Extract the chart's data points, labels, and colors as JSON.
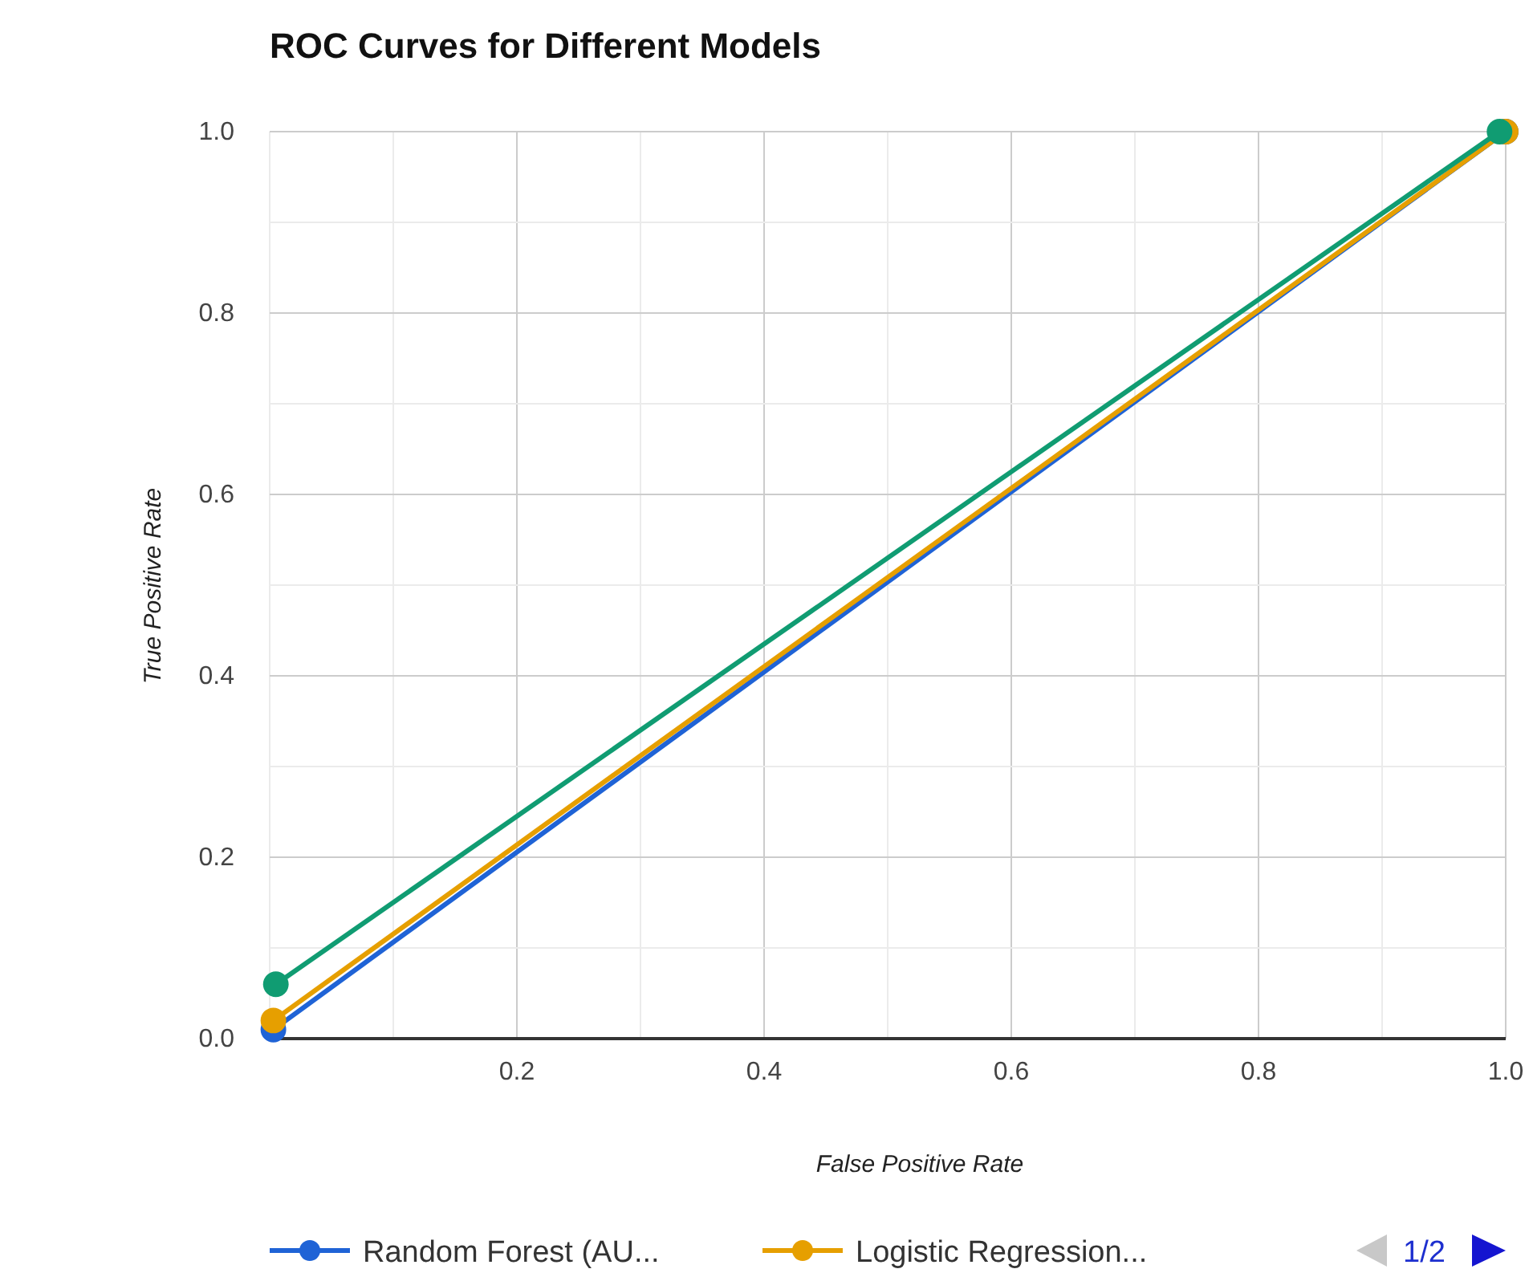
{
  "chart_data": {
    "type": "line",
    "title": "ROC Curves for Different Models",
    "xlabel": "False Positive Rate",
    "ylabel": "True Positive Rate",
    "xlim": [
      0,
      1
    ],
    "ylim": [
      0,
      1
    ],
    "xticks": [
      {
        "value": 0,
        "label": null
      },
      {
        "value": 0.1,
        "label": null
      },
      {
        "value": 0.2,
        "label": "0.2"
      },
      {
        "value": 0.3,
        "label": null
      },
      {
        "value": 0.4,
        "label": "0.4"
      },
      {
        "value": 0.5,
        "label": null
      },
      {
        "value": 0.6,
        "label": "0.6"
      },
      {
        "value": 0.7,
        "label": null
      },
      {
        "value": 0.8,
        "label": "0.8"
      },
      {
        "value": 0.9,
        "label": null
      },
      {
        "value": 1,
        "label": "1.0"
      }
    ],
    "yticks": [
      {
        "value": 0,
        "label": "0.0"
      },
      {
        "value": 0.1,
        "label": null
      },
      {
        "value": 0.2,
        "label": "0.2"
      },
      {
        "value": 0.3,
        "label": null
      },
      {
        "value": 0.4,
        "label": "0.4"
      },
      {
        "value": 0.5,
        "label": null
      },
      {
        "value": 0.6,
        "label": "0.6"
      },
      {
        "value": 0.7,
        "label": null
      },
      {
        "value": 0.8,
        "label": "0.8"
      },
      {
        "value": 0.9,
        "label": null
      },
      {
        "value": 1,
        "label": "1.0"
      }
    ],
    "grid": true,
    "legend": "bottom",
    "marker": "circle",
    "line_style": "solid",
    "annotations": [
      "1/2"
    ],
    "series": [
      {
        "name": "Random Forest (AU...",
        "color": "#1f63d6",
        "x": [
          0.003,
          1
        ],
        "values": [
          0.01,
          1
        ]
      },
      {
        "name": "Logistic Regression...",
        "color": "#e69f00",
        "x": [
          0.003,
          1
        ],
        "values": [
          0.02,
          1
        ]
      },
      {
        "color": "#109c72",
        "x": [
          0.005,
          0.995
        ],
        "values": [
          0.06,
          1
        ]
      }
    ]
  }
}
